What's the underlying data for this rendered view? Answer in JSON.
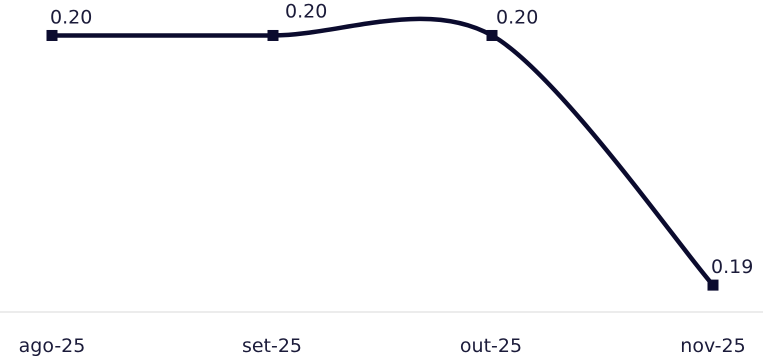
{
  "chart_data": {
    "type": "line",
    "categories": [
      "ago-25",
      "set-25",
      "out-25",
      "nov-25"
    ],
    "series": [
      {
        "values": [
          0.2,
          0.2,
          0.2,
          0.19
        ],
        "labels": [
          "0.20",
          "0.20",
          "0.20",
          "0.19"
        ]
      }
    ],
    "ylim": [
      0.187,
      0.2007
    ],
    "grid": false,
    "legend": "none",
    "colors": {
      "line": "#0b0b2e",
      "axis": "#d9d9d9",
      "text": "#1b1b3a"
    }
  }
}
